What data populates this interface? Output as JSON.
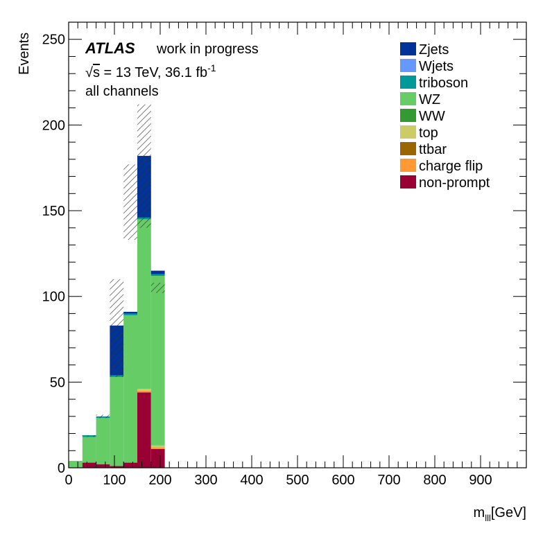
{
  "chart_data": {
    "type": "bar",
    "stacked": true,
    "title": "",
    "ylabel": "Events",
    "xlabel_main": "m",
    "xlabel_sub": "lll",
    "xlabel_unit": "[GeV]",
    "xlim": [
      0,
      1000
    ],
    "ylim": [
      0,
      260
    ],
    "x_ticks": [
      "0",
      "100",
      "200",
      "300",
      "400",
      "500",
      "600",
      "700",
      "800",
      "900"
    ],
    "y_ticks": [
      "0",
      "50",
      "100",
      "150",
      "200",
      "250"
    ],
    "bin_edges": [
      0,
      30,
      60,
      90,
      120,
      150,
      180,
      210
    ],
    "series": [
      {
        "name": "non-prompt",
        "color": "#990033",
        "values": [
          0,
          3,
          2,
          1,
          3,
          44,
          11,
          4
        ]
      },
      {
        "name": "charge flip",
        "color": "#ff9933",
        "values": [
          0,
          0,
          0,
          0,
          0,
          1,
          1,
          1
        ]
      },
      {
        "name": "ttbar",
        "color": "#996600",
        "values": [
          0,
          0,
          0,
          0,
          0,
          0,
          0,
          0
        ]
      },
      {
        "name": "top",
        "color": "#cccc66",
        "values": [
          0,
          0,
          0,
          0,
          0,
          1,
          1,
          1
        ]
      },
      {
        "name": "WW",
        "color": "#339933",
        "values": [
          0,
          0,
          0,
          0,
          0,
          0,
          0,
          0
        ]
      },
      {
        "name": "WZ",
        "color": "#66cc66",
        "values": [
          4,
          15,
          27,
          52,
          86,
          99,
          99,
          104
        ]
      },
      {
        "name": "triboson",
        "color": "#009999",
        "values": [
          0,
          1,
          1,
          1,
          1,
          1,
          1,
          1
        ]
      },
      {
        "name": "Wjets",
        "color": "#6699ff",
        "values": [
          0,
          0,
          0,
          0,
          0,
          0,
          0,
          0
        ]
      },
      {
        "name": "Zjets",
        "color": "#003399",
        "values": [
          0,
          0,
          0,
          29,
          1,
          36,
          2,
          0
        ]
      }
    ],
    "uncertainty_band": {
      "low": [
        4,
        18,
        29,
        53,
        133,
        140,
        102,
        103
      ],
      "high": [
        4,
        19,
        31,
        110,
        177,
        212,
        108,
        109
      ]
    },
    "legend_placement": "top-right",
    "grid": false
  },
  "labels": {
    "atlas": "ATLAS",
    "status": "work in progress",
    "energy_sqrt": "√",
    "energy_s": "s",
    "energy_rest": " = 13 TeV, 36.1 fb",
    "lumi_sup": "-1",
    "channels": "all channels"
  }
}
